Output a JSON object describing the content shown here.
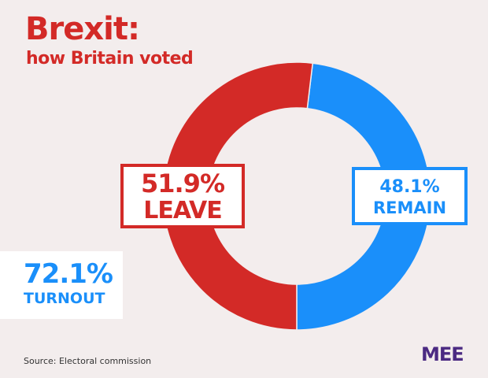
{
  "chart_data": {
    "type": "pie",
    "variant": "donut",
    "title": "Brexit:",
    "subtitle": "how Britain voted",
    "categories": [
      "REMAIN",
      "LEAVE"
    ],
    "values": [
      48.1,
      51.9
    ],
    "value_labels": [
      "48.1%",
      "51.9%"
    ],
    "colors": [
      "#1a8ffa",
      "#d32a27"
    ],
    "annotation": {
      "value_label": "72.1%",
      "label": "TURNOUT"
    },
    "source": "Source: Electoral commission"
  },
  "logo": "MEE"
}
